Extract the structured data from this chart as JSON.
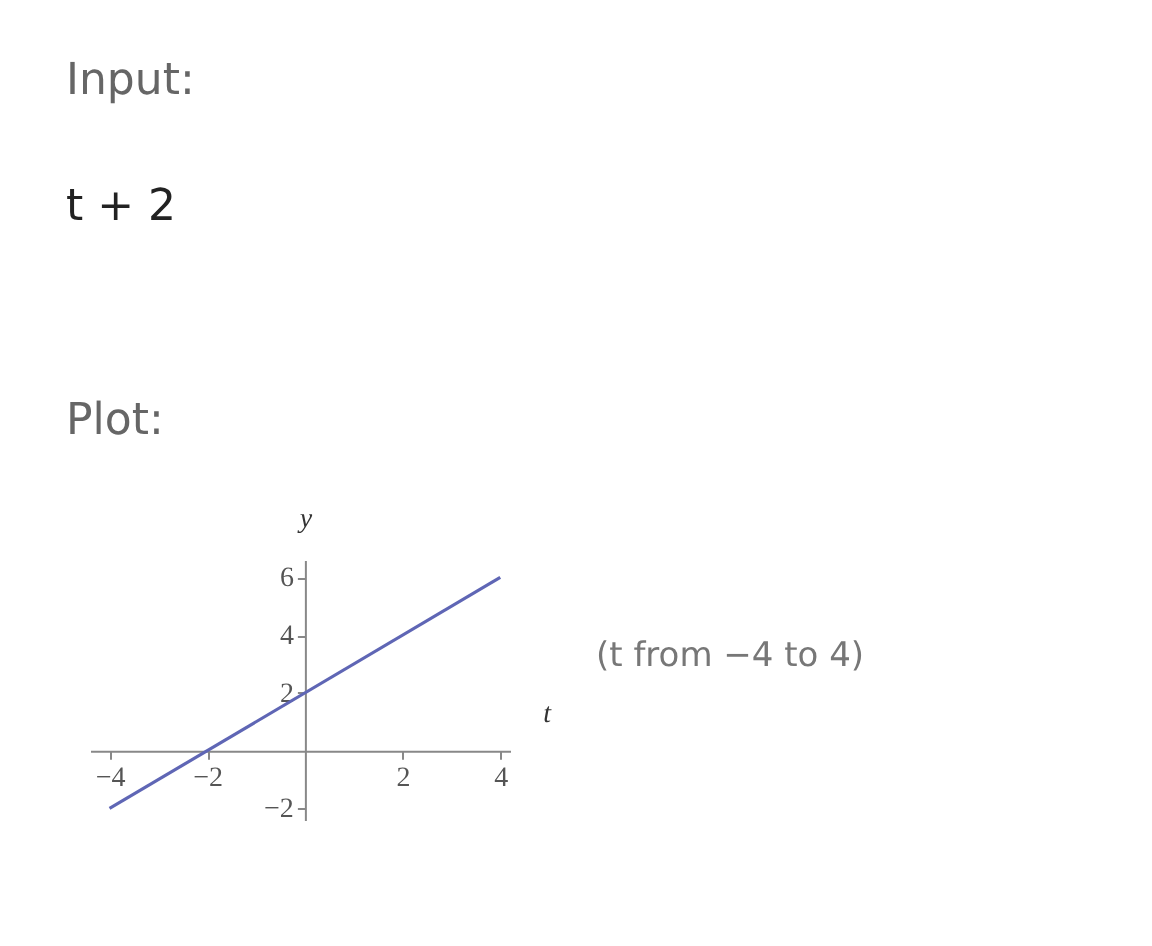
{
  "chart_data": {
    "type": "line",
    "xlabel": "t",
    "ylabel": "y",
    "x": [
      -4,
      4
    ],
    "series": [
      {
        "color": "#5f66b5",
        "values": [
          -2,
          6
        ]
      }
    ],
    "xlim": [
      -4.4,
      4.2
    ],
    "ylim": [
      -2.4,
      6.6
    ],
    "xticks": [
      -4,
      -2,
      2,
      4
    ],
    "yticks": [
      -2,
      2,
      4,
      6
    ],
    "grid": false,
    "marker": "none",
    "line_style": "solid",
    "annotations": [
      "Input:",
      "t + 2",
      "Plot:",
      "(t from −4 to 4)"
    ]
  }
}
